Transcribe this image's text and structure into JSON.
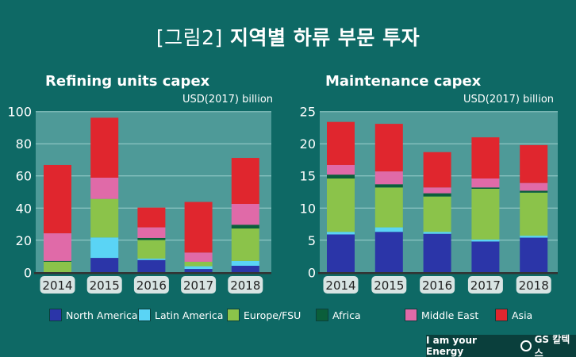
{
  "title_bracket": "[그림2]",
  "title": "지역별 하류 부문 투자",
  "footer": {
    "slogan": "I am your Energy",
    "brand": "GS 칼텍스"
  },
  "colors": {
    "background": "#0e6965",
    "plot": "#4e9a98",
    "North America": "#2b35a8",
    "Latin America": "#5ad4f5",
    "Europe/FSU": "#8bc34a",
    "Africa": "#0b5e3a",
    "Middle East": "#e06aa8",
    "Asia": "#e0262e"
  },
  "legend": [
    "North America",
    "Latin America",
    "Europe/FSU",
    "Africa",
    "Middle East",
    "Asia"
  ],
  "chart_data": [
    {
      "type": "bar",
      "stacked": true,
      "title": "Refining units capex",
      "ylabel": "USD(2017) billion",
      "ylim": [
        0,
        100
      ],
      "yticks": [
        0,
        20,
        40,
        60,
        80,
        100
      ],
      "grid": true,
      "categories": [
        "2014",
        "2015",
        "2016",
        "2017",
        "2018"
      ],
      "series": [
        {
          "name": "North America",
          "values": [
            0,
            9.0,
            7.7,
            2.1,
            4.1
          ]
        },
        {
          "name": "Latin America",
          "values": [
            0,
            12.7,
            0.9,
            1.7,
            3.0
          ]
        },
        {
          "name": "Europe/FSU",
          "values": [
            6.6,
            24.0,
            11.5,
            2.8,
            20.2
          ]
        },
        {
          "name": "Africa",
          "values": [
            0.5,
            0,
            1.3,
            0,
            2.3
          ]
        },
        {
          "name": "Middle East",
          "values": [
            17.2,
            13.2,
            6.6,
            5.7,
            13.0
          ]
        },
        {
          "name": "Asia",
          "values": [
            42.5,
            37.3,
            12.3,
            31.5,
            28.6
          ]
        }
      ]
    },
    {
      "type": "bar",
      "stacked": true,
      "title": "Maintenance capex",
      "ylabel": "USD(2017) billion",
      "ylim": [
        0,
        25
      ],
      "yticks": [
        0,
        5,
        10,
        15,
        20,
        25
      ],
      "grid": true,
      "categories": [
        "2014",
        "2015",
        "2016",
        "2017",
        "2018"
      ],
      "series": [
        {
          "name": "North America",
          "values": [
            5.9,
            6.3,
            6.0,
            4.8,
            5.4
          ]
        },
        {
          "name": "Latin America",
          "values": [
            0.4,
            0.7,
            0.3,
            0.3,
            0.3
          ]
        },
        {
          "name": "Europe/FSU",
          "values": [
            8.3,
            6.2,
            5.5,
            7.9,
            6.7
          ]
        },
        {
          "name": "Africa",
          "values": [
            0.6,
            0.5,
            0.5,
            0.2,
            0.3
          ]
        },
        {
          "name": "Middle East",
          "values": [
            1.5,
            2.0,
            0.9,
            1.4,
            1.2
          ]
        },
        {
          "name": "Asia",
          "values": [
            6.7,
            7.4,
            5.5,
            6.4,
            5.9
          ]
        }
      ]
    }
  ]
}
